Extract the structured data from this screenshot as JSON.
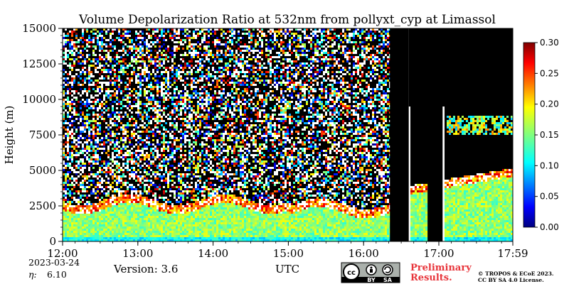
{
  "chart_data": {
    "type": "heatmap",
    "title": "Volume Depolarization Ratio at 532nm from pollyxt_cyp at Limassol",
    "ylabel": "Height (m)",
    "xlabel": "UTC",
    "x_ticks": [
      "12:00",
      "13:00",
      "14:00",
      "15:00",
      "16:00",
      "17:00",
      "17:59"
    ],
    "x_tick_hours": [
      12.0,
      13.0,
      14.0,
      15.0,
      16.0,
      17.0,
      17.983
    ],
    "x_range_hours": [
      12.0,
      17.983
    ],
    "y_ticks": [
      0,
      2500,
      5000,
      7500,
      10000,
      12500,
      15000
    ],
    "ylim": [
      0,
      15000
    ],
    "colorbar": {
      "ticks": [
        "0.00",
        "0.05",
        "0.10",
        "0.15",
        "0.20",
        "0.25",
        "0.30"
      ],
      "range": [
        0.0,
        0.3
      ],
      "colormap": "jet"
    },
    "no_data_regions_hours": [
      [
        16.35,
        16.6
      ],
      [
        16.85,
        17.05
      ]
    ],
    "features": {
      "aerosol_layer_top_m": 3000,
      "noise_above_m": 3500,
      "cloud_layer_m": [
        7500,
        9000
      ]
    }
  },
  "footer": {
    "date": "2023-03-24",
    "eta_label": "η:",
    "eta_value": "6.10",
    "version": "Version: 3.6",
    "license_badge": {
      "cc": "cc",
      "by": "BY",
      "sa": "SA"
    },
    "preliminary_line1": "Preliminary",
    "preliminary_line2": "Results.",
    "copyright_line1": "© TROPOS & ECoE 2023.",
    "copyright_line2": "CC BY SA 4.0 License."
  },
  "colors": {
    "preliminary": "#e8353b",
    "no_data": "#000000"
  }
}
